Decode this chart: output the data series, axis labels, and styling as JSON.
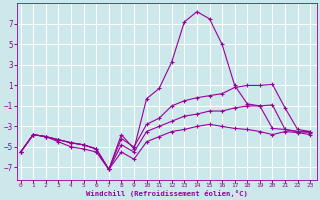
{
  "xlabel": "Windchill (Refroidissement éolien,°C)",
  "bg_color": "#cce8eb",
  "grid_color": "#ffffff",
  "line_color": "#990099",
  "x_ticks": [
    0,
    1,
    2,
    3,
    4,
    5,
    6,
    7,
    8,
    9,
    10,
    11,
    12,
    13,
    14,
    15,
    16,
    17,
    18,
    19,
    20,
    21,
    22,
    23
  ],
  "y_ticks": [
    -7,
    -5,
    -3,
    -1,
    1,
    3,
    5,
    7
  ],
  "ylim": [
    -8.2,
    9.0
  ],
  "xlim": [
    -0.3,
    23.5
  ],
  "series": [
    {
      "x": [
        0,
        1,
        2,
        3,
        4,
        5,
        6,
        7,
        8,
        9,
        10,
        11,
        12,
        13,
        14,
        15,
        16,
        17,
        18,
        19,
        20,
        21,
        22,
        23
      ],
      "y": [
        -5.5,
        -3.8,
        -4.0,
        -4.3,
        -4.6,
        -4.8,
        -5.2,
        -7.2,
        -3.8,
        -5.2,
        -0.3,
        0.7,
        3.3,
        7.2,
        8.2,
        7.5,
        5.0,
        1.0,
        -0.8,
        -1.0,
        -3.2,
        -3.3,
        -3.5,
        -3.5
      ]
    },
    {
      "x": [
        0,
        1,
        2,
        3,
        4,
        5,
        6,
        7,
        8,
        9,
        10,
        11,
        12,
        13,
        14,
        15,
        16,
        17,
        18,
        19,
        20,
        21,
        22,
        23
      ],
      "y": [
        -5.5,
        -3.8,
        -4.0,
        -4.3,
        -4.6,
        -4.8,
        -5.2,
        -7.2,
        -4.2,
        -5.0,
        -2.8,
        -2.2,
        -1.0,
        -0.5,
        -0.2,
        -0.0,
        0.2,
        0.8,
        1.0,
        1.0,
        1.1,
        -1.2,
        -3.3,
        -3.5
      ]
    },
    {
      "x": [
        0,
        1,
        2,
        3,
        4,
        5,
        6,
        7,
        8,
        9,
        10,
        11,
        12,
        13,
        14,
        15,
        16,
        17,
        18,
        19,
        20,
        21,
        22,
        23
      ],
      "y": [
        -5.5,
        -3.8,
        -4.0,
        -4.3,
        -4.6,
        -4.8,
        -5.2,
        -7.2,
        -4.8,
        -5.5,
        -3.5,
        -3.0,
        -2.5,
        -2.0,
        -1.8,
        -1.5,
        -1.5,
        -1.2,
        -1.0,
        -1.0,
        -0.9,
        -3.3,
        -3.5,
        -3.6
      ]
    },
    {
      "x": [
        0,
        1,
        2,
        3,
        4,
        5,
        6,
        7,
        8,
        9,
        10,
        11,
        12,
        13,
        14,
        15,
        16,
        17,
        18,
        19,
        20,
        21,
        22,
        23
      ],
      "y": [
        -5.5,
        -3.8,
        -4.0,
        -4.5,
        -5.0,
        -5.2,
        -5.5,
        -7.2,
        -5.5,
        -6.2,
        -4.5,
        -4.0,
        -3.5,
        -3.3,
        -3.0,
        -2.8,
        -3.0,
        -3.2,
        -3.3,
        -3.5,
        -3.8,
        -3.5,
        -3.6,
        -3.8
      ]
    }
  ]
}
